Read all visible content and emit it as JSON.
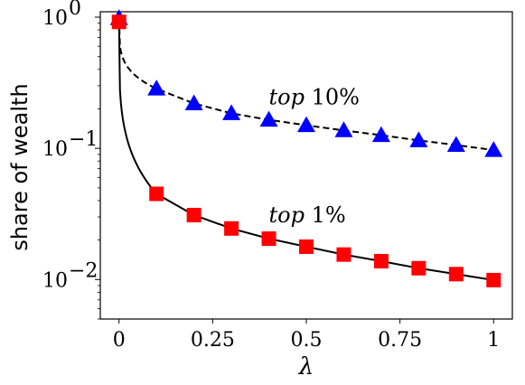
{
  "chart_data": {
    "type": "line",
    "ylabel": "share of wealth",
    "xlabel": "λ",
    "yscale": "log",
    "xlim": [
      -0.05,
      1.05
    ],
    "ylim": [
      0.005,
      1.1
    ],
    "xticks": [
      0,
      0.25,
      0.5,
      0.75,
      1
    ],
    "xtick_labels": [
      "0",
      "0.25",
      "0.5",
      "0.75",
      "1"
    ],
    "yticks": [
      {
        "value": 1,
        "base": "10",
        "exp": "0"
      },
      {
        "value": 0.1,
        "base": "10",
        "exp": "−1"
      },
      {
        "value": 0.01,
        "base": "10",
        "exp": "−2"
      }
    ],
    "grid": false,
    "annotations": [
      {
        "id": "top10",
        "word": "top",
        "pct": "10%",
        "x": 0.4,
        "y": 0.245
      },
      {
        "id": "top1",
        "word": "top",
        "pct": "1%",
        "x": 0.4,
        "y": 0.031
      }
    ],
    "series": [
      {
        "id": "top10",
        "color": "#0000ff",
        "line_style": "dashed",
        "marker": "triangle",
        "x": [
          0,
          0.1,
          0.2,
          0.3,
          0.4,
          0.5,
          0.6,
          0.7,
          0.8,
          0.9,
          1.0
        ],
        "values": [
          0.98,
          0.285,
          0.22,
          0.185,
          0.165,
          0.15,
          0.137,
          0.126,
          0.115,
          0.106,
          0.097
        ]
      },
      {
        "id": "top1",
        "color": "#ff0000",
        "line_style": "solid",
        "marker": "square",
        "x": [
          0,
          0.1,
          0.2,
          0.3,
          0.4,
          0.5,
          0.6,
          0.7,
          0.8,
          0.9,
          1.0
        ],
        "values": [
          0.92,
          0.045,
          0.031,
          0.0245,
          0.0205,
          0.0178,
          0.0155,
          0.0138,
          0.0122,
          0.011,
          0.0099
        ]
      }
    ]
  }
}
